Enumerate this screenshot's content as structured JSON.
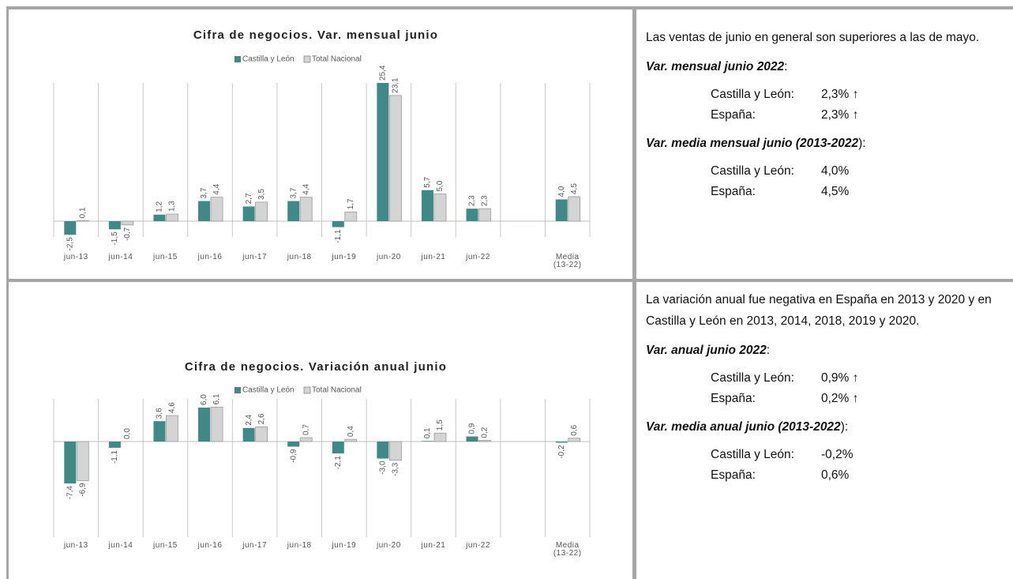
{
  "chart_data": [
    {
      "type": "bar",
      "title": "Cifra de negocios. Var. mensual junio",
      "categories": [
        "jun-13",
        "jun-14",
        "jun-15",
        "jun-16",
        "jun-17",
        "jun-18",
        "jun-19",
        "jun-20",
        "jun-21",
        "jun-22",
        null,
        "Media (13-22)"
      ],
      "series": [
        {
          "name": "Castilla y León",
          "color": "#3f8a87",
          "values": [
            -2.5,
            -1.5,
            1.2,
            3.7,
            2.7,
            3.7,
            -1.1,
            25.4,
            5.7,
            2.3,
            null,
            4.0
          ],
          "value_labels": [
            "-2,5",
            "-1,5",
            "1,2",
            "3,7",
            "2,7",
            "3,7",
            "-1,1",
            "25,4",
            "5,7",
            "2,3",
            null,
            "4,0"
          ]
        },
        {
          "name": "Total Nacional",
          "color": "#d4d4d4",
          "values": [
            0.1,
            -0.7,
            1.3,
            4.4,
            3.5,
            4.4,
            1.7,
            23.1,
            5.0,
            2.3,
            null,
            4.5
          ],
          "value_labels": [
            "0,1",
            "-0,7",
            "1,3",
            "4,4",
            "3,5",
            "4,4",
            "1,7",
            "23,1",
            "5,0",
            "2,3",
            null,
            "4,5"
          ]
        }
      ]
    },
    {
      "type": "bar",
      "title": "Cifra de negocios. Variación anual junio",
      "categories": [
        "jun-13",
        "jun-14",
        "jun-15",
        "jun-16",
        "jun-17",
        "jun-18",
        "jun-19",
        "jun-20",
        "jun-21",
        "jun-22",
        null,
        "Media (13-22)"
      ],
      "series": [
        {
          "name": "Castilla y León",
          "color": "#3f8a87",
          "values": [
            -7.4,
            -1.1,
            3.6,
            6.0,
            2.4,
            -0.9,
            -2.1,
            -3.0,
            0.1,
            0.9,
            null,
            -0.2
          ],
          "value_labels": [
            "-7,4",
            "-1,1",
            "3,6",
            "6,0",
            "2,4",
            "-0,9",
            "-2,1",
            "-3,0",
            "0,1",
            "0,9",
            null,
            "-0,2"
          ]
        },
        {
          "name": "Total Nacional",
          "color": "#d4d4d4",
          "values": [
            -6.9,
            0.0,
            4.6,
            6.1,
            2.6,
            0.7,
            0.4,
            -3.3,
            1.5,
            0.2,
            null,
            0.6
          ],
          "value_labels": [
            "-6,9",
            "0,0",
            "4,6",
            "6,1",
            "2,6",
            "0,7",
            "0,4",
            "-3,3",
            "1,5",
            "0,2",
            null,
            "0,6"
          ]
        }
      ]
    }
  ],
  "notes": [
    {
      "intro": "Las ventas de junio en general son superiores a las de mayo.",
      "blocks": [
        {
          "heading": "Var. mensual junio 2022",
          "suffix": ":",
          "rows": [
            [
              "Castilla y León:",
              "2,3% ↑"
            ],
            [
              "España:",
              "2,3% ↑"
            ]
          ]
        },
        {
          "heading": "Var. media mensual junio (2013-2022",
          "suffix": "):",
          "rows": [
            [
              "Castilla y León:",
              "4,0%"
            ],
            [
              "España:",
              "4,5%"
            ]
          ]
        }
      ]
    },
    {
      "intro": "La variación anual fue negativa en España en 2013 y 2020 y en Castilla y León en 2013, 2014, 2018, 2019 y 2020.",
      "blocks": [
        {
          "heading": "Var. anual junio 2022",
          "suffix": ":",
          "rows": [
            [
              "Castilla y León:",
              "0,9% ↑"
            ],
            [
              "España:",
              "0,2% ↑"
            ]
          ]
        },
        {
          "heading": "Var. media anual junio (2013-2022",
          "suffix": "):",
          "rows": [
            [
              "Castilla y León:",
              "-0,2%"
            ],
            [
              "España:",
              "0,6%"
            ]
          ]
        }
      ]
    }
  ]
}
